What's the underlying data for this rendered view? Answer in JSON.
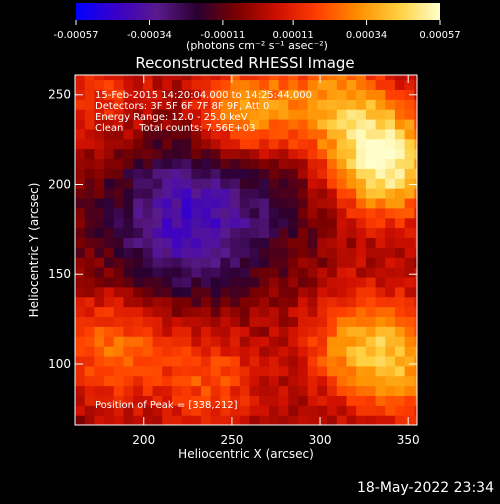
{
  "chart_data": {
    "type": "heatmap",
    "title": "Reconstructed RHESSI Image",
    "xlabel": "Heliocentric X (arcsec)",
    "ylabel": "Heliocentric Y (arcsec)",
    "xlim": [
      161,
      355
    ],
    "ylim": [
      66,
      261
    ],
    "xticks": [
      "200",
      "250",
      "300",
      "350"
    ],
    "yticks": [
      "100",
      "150",
      "200",
      "250"
    ],
    "xtick_values": [
      200,
      250,
      300,
      350
    ],
    "ytick_values": [
      100,
      150,
      200,
      250
    ],
    "colorbar": {
      "ticks": [
        "-0.00057",
        "-0.00034",
        "-0.00011",
        "0.00011",
        "0.00034",
        "0.00057"
      ],
      "tick_values": [
        -0.00057,
        -0.00034,
        -0.00011,
        0.00011,
        0.00034,
        0.00057
      ],
      "unit_label": "(photons cm⁻² s⁻¹ asec⁻²)",
      "colormap": [
        "#0000ff",
        "#3a00c8",
        "#5a1a8c",
        "#2a0030",
        "#7a0000",
        "#d01000",
        "#ff4000",
        "#ff9000",
        "#ffd040",
        "#ffffcc"
      ]
    },
    "annotations": [
      "15-Feb-2015 14:20:04.000 to 14:25:44.000",
      "Detectors: 3F 5F 6F 7F 8F 9F, Att 0",
      "Energy Range: 12.0 - 25.0 keV",
      "Clean     Total counts: 7.56E+03"
    ],
    "peak_text": "Position of Peak = [338,212]",
    "peak": [
      338,
      212
    ],
    "sources": [
      {
        "x": 338,
        "y": 212,
        "value": 0.00057
      },
      {
        "x": 258,
        "y": 238,
        "value": 0.00045
      },
      {
        "x": 310,
        "y": 245,
        "value": 0.00035
      },
      {
        "x": 322,
        "y": 112,
        "value": 0.00036
      },
      {
        "x": 182,
        "y": 110,
        "value": 0.0003
      },
      {
        "x": 238,
        "y": 92,
        "value": 0.00024
      },
      {
        "x": 352,
        "y": 96,
        "value": 0.00028
      },
      {
        "x": 176,
        "y": 252,
        "value": 0.0002
      },
      {
        "x": 220,
        "y": 178,
        "value": -0.00032
      },
      {
        "x": 260,
        "y": 205,
        "value": -0.00018
      }
    ]
  },
  "footer": {
    "date": "18-May-2022 23:34"
  }
}
